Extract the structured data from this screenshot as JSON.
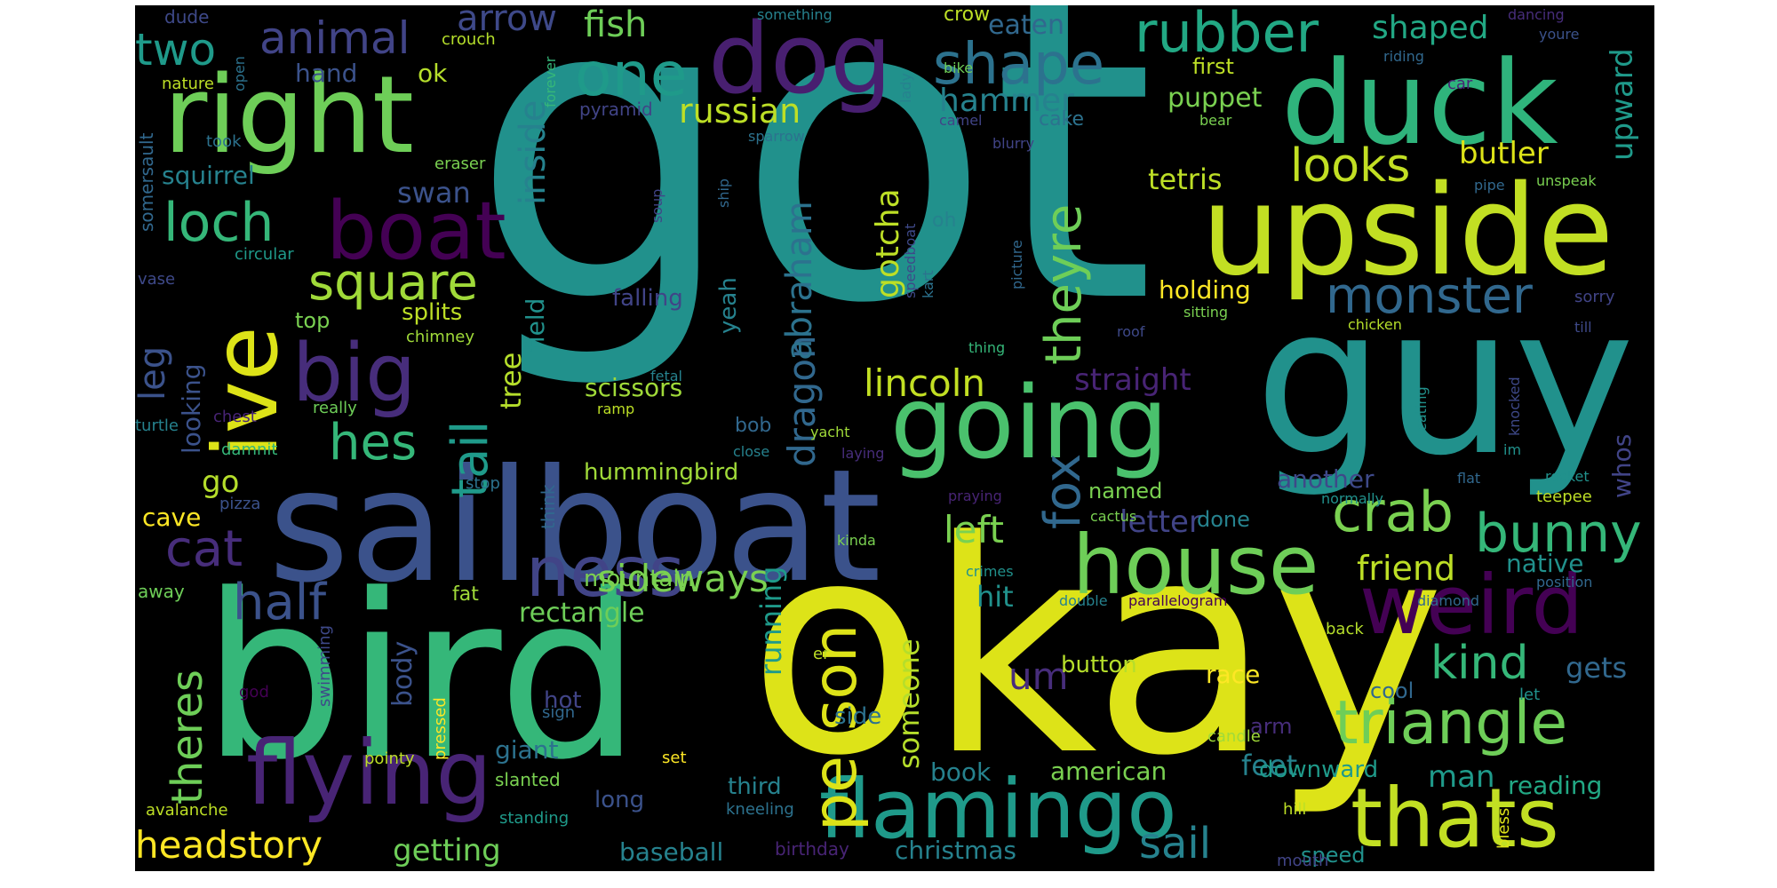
{
  "palette": {
    "background": "#000000",
    "page": "#ffffff",
    "viridis": [
      "#440154",
      "#482475",
      "#414487",
      "#355f8d",
      "#2a788e",
      "#21918c",
      "#22a884",
      "#44bf70",
      "#7ad151",
      "#bddf26",
      "#fde725"
    ]
  },
  "words": [
    {
      "text": "got",
      "color": "#21918c"
    },
    {
      "text": "okay",
      "color": "#dde318"
    },
    {
      "text": "bird",
      "color": "#35b779"
    },
    {
      "text": "guy",
      "color": "#21918c"
    },
    {
      "text": "sailboat",
      "color": "#3b528b"
    },
    {
      "text": "upside",
      "color": "#c2df23"
    },
    {
      "text": "duck",
      "color": "#2fb47c"
    },
    {
      "text": "right",
      "color": "#6ece58"
    },
    {
      "text": "dog",
      "color": "#481f70"
    },
    {
      "text": "going",
      "color": "#4ac16d"
    },
    {
      "text": "house",
      "color": "#6ece58"
    },
    {
      "text": "flying",
      "color": "#482475"
    },
    {
      "text": "flamingo",
      "color": "#1f9a8a"
    },
    {
      "text": "thats",
      "color": "#c2df23"
    },
    {
      "text": "weird",
      "color": "#440154"
    },
    {
      "text": "ive",
      "color": "#dde318"
    },
    {
      "text": "big",
      "color": "#472d7b"
    },
    {
      "text": "boat",
      "color": "#440154"
    },
    {
      "text": "crab",
      "color": "#7ad151"
    },
    {
      "text": "bunny",
      "color": "#35b779"
    },
    {
      "text": "triangle",
      "color": "#6ece58"
    },
    {
      "text": "person",
      "color": "#dde318"
    },
    {
      "text": "ness",
      "color": "#414487"
    },
    {
      "text": "shape",
      "color": "#2c728e"
    },
    {
      "text": "one",
      "color": "#1f9a8a"
    },
    {
      "text": "rubber",
      "color": "#22a884"
    },
    {
      "text": "monster",
      "color": "#31688e"
    },
    {
      "text": "square",
      "color": "#a0da39"
    },
    {
      "text": "loch",
      "color": "#35b779"
    },
    {
      "text": "half",
      "color": "#3b528b"
    },
    {
      "text": "theyre",
      "color": "#6ece58"
    },
    {
      "text": "fox",
      "color": "#31688e"
    },
    {
      "text": "cat",
      "color": "#472d7b"
    },
    {
      "text": "hes",
      "color": "#35b779"
    },
    {
      "text": "tail",
      "color": "#1f9a8a"
    },
    {
      "text": "kind",
      "color": "#35b779"
    },
    {
      "text": "two",
      "color": "#1f9a8a"
    },
    {
      "text": "animal",
      "color": "#414487"
    },
    {
      "text": "sideways",
      "color": "#7ad151"
    },
    {
      "text": "looks",
      "color": "#c2df23"
    },
    {
      "text": "theres",
      "color": "#6ece58"
    },
    {
      "text": "sail",
      "color": "#26828e"
    },
    {
      "text": "headstory",
      "color": "#fde725"
    },
    {
      "text": "dragon",
      "color": "#31688e"
    },
    {
      "text": "abraham",
      "color": "#2c728e"
    },
    {
      "text": "lincoln",
      "color": "#c2df23"
    },
    {
      "text": "inside",
      "color": "#26828e"
    },
    {
      "text": "arrow",
      "color": "#3e4989"
    },
    {
      "text": "fish",
      "color": "#6ece58"
    },
    {
      "text": "gotcha",
      "color": "#bddf26"
    },
    {
      "text": "leg",
      "color": "#3b528b"
    },
    {
      "text": "friend",
      "color": "#bddf26"
    },
    {
      "text": "left",
      "color": "#7ad151"
    },
    {
      "text": "russian",
      "color": "#bddf26"
    },
    {
      "text": "shaped",
      "color": "#22a884"
    },
    {
      "text": "upward",
      "color": "#1f9a8a"
    },
    {
      "text": "hammer",
      "color": "#26828e"
    },
    {
      "text": "letter",
      "color": "#414487"
    },
    {
      "text": "straight",
      "color": "#482475"
    },
    {
      "text": "tetris",
      "color": "#bddf26"
    },
    {
      "text": "butler",
      "color": "#dde318"
    },
    {
      "text": "um",
      "color": "#472d7b"
    },
    {
      "text": "gets",
      "color": "#31688e"
    },
    {
      "text": "someone",
      "color": "#b5de2b"
    },
    {
      "text": "running",
      "color": "#1f9a8a"
    },
    {
      "text": "feet",
      "color": "#26828e"
    },
    {
      "text": "man",
      "color": "#1f9a8a"
    },
    {
      "text": "getting",
      "color": "#6ece58"
    },
    {
      "text": "go",
      "color": "#b5de2b"
    },
    {
      "text": "swan",
      "color": "#3b528b"
    },
    {
      "text": "squirrel",
      "color": "#26828e"
    },
    {
      "text": "looking",
      "color": "#3b528b"
    },
    {
      "text": "tree",
      "color": "#b5de2b"
    },
    {
      "text": "puppet",
      "color": "#7ad151"
    },
    {
      "text": "holding",
      "color": "#fde725"
    },
    {
      "text": "eaten",
      "color": "#31688e"
    },
    {
      "text": "hit",
      "color": "#21918c"
    },
    {
      "text": "body",
      "color": "#3b528b"
    },
    {
      "text": "rectangle",
      "color": "#6ece58"
    },
    {
      "text": "native",
      "color": "#21918c"
    },
    {
      "text": "whos",
      "color": "#414487"
    },
    {
      "text": "another",
      "color": "#3e4989"
    },
    {
      "text": "cave",
      "color": "#fde725"
    },
    {
      "text": "hummingbird",
      "color": "#a0da39"
    },
    {
      "text": "scissors",
      "color": "#a0da39"
    },
    {
      "text": "baseball",
      "color": "#26828e"
    },
    {
      "text": "christmas",
      "color": "#26828e"
    },
    {
      "text": "american",
      "color": "#7ad151"
    },
    {
      "text": "giant",
      "color": "#2c728e"
    },
    {
      "text": "splits",
      "color": "#bddf26"
    },
    {
      "text": "field",
      "color": "#21918c"
    },
    {
      "text": "hand",
      "color": "#3b528b"
    },
    {
      "text": "ok",
      "color": "#b5de2b"
    },
    {
      "text": "falling",
      "color": "#414487"
    },
    {
      "text": "yeah",
      "color": "#26828e"
    },
    {
      "text": "mountain",
      "color": "#7ad151"
    },
    {
      "text": "book",
      "color": "#26828e"
    },
    {
      "text": "third",
      "color": "#26828e"
    },
    {
      "text": "long",
      "color": "#3b528b"
    },
    {
      "text": "hot",
      "color": "#414487"
    },
    {
      "text": "button",
      "color": "#b5de2b"
    },
    {
      "text": "side",
      "color": "#2c728e"
    },
    {
      "text": "race",
      "color": "#fde725"
    },
    {
      "text": "cool",
      "color": "#31688e"
    },
    {
      "text": "downward",
      "color": "#1f9a8a"
    },
    {
      "text": "reading",
      "color": "#22a884"
    },
    {
      "text": "speed",
      "color": "#21918c"
    },
    {
      "text": "fat",
      "color": "#a0da39"
    },
    {
      "text": "done",
      "color": "#26828e"
    },
    {
      "text": "named",
      "color": "#7ad151"
    },
    {
      "text": "top",
      "color": "#7ad151"
    },
    {
      "text": "arm",
      "color": "#472d7b"
    },
    {
      "text": "cake",
      "color": "#2c728e"
    },
    {
      "text": "first",
      "color": "#bddf26"
    },
    {
      "text": "oh",
      "color": "#26828e"
    },
    {
      "text": "bob",
      "color": "#31688e"
    },
    {
      "text": "crow",
      "color": "#bddf26"
    },
    {
      "text": "pyramid",
      "color": "#414487"
    },
    {
      "text": "somersault",
      "color": "#31688e"
    },
    {
      "text": "dude",
      "color": "#3e4989"
    },
    {
      "text": "crouch",
      "color": "#b5de2b"
    },
    {
      "text": "nature",
      "color": "#bddf26"
    },
    {
      "text": "open",
      "color": "#2c728e"
    },
    {
      "text": "forever",
      "color": "#35b779"
    },
    {
      "text": "took",
      "color": "#2c728e"
    },
    {
      "text": "eraser",
      "color": "#7ad151"
    },
    {
      "text": "circular",
      "color": "#1f9a8a"
    },
    {
      "text": "vase",
      "color": "#3e4989"
    },
    {
      "text": "chimney",
      "color": "#a0da39"
    },
    {
      "text": "chest",
      "color": "#482475"
    },
    {
      "text": "really",
      "color": "#6ece58"
    },
    {
      "text": "turtle",
      "color": "#26828e"
    },
    {
      "text": "damnit",
      "color": "#35b779"
    },
    {
      "text": "pizza",
      "color": "#3b528b"
    },
    {
      "text": "away",
      "color": "#6ece58"
    },
    {
      "text": "stop",
      "color": "#2c728e"
    },
    {
      "text": "think",
      "color": "#31688e"
    },
    {
      "text": "pointy",
      "color": "#bddf26"
    },
    {
      "text": "avalanche",
      "color": "#bddf26"
    },
    {
      "text": "god",
      "color": "#440154"
    },
    {
      "text": "swimming",
      "color": "#3e4989"
    },
    {
      "text": "pressed",
      "color": "#fde725"
    },
    {
      "text": "sign",
      "color": "#31688e"
    },
    {
      "text": "slanted",
      "color": "#7ad151"
    },
    {
      "text": "standing",
      "color": "#1f9a8a"
    },
    {
      "text": "kneeling",
      "color": "#2c728e"
    },
    {
      "text": "birthday",
      "color": "#482475"
    },
    {
      "text": "er",
      "color": "#bddf26"
    },
    {
      "text": "set",
      "color": "#fde725"
    },
    {
      "text": "hill",
      "color": "#bddf26"
    },
    {
      "text": "candle",
      "color": "#a0da39"
    },
    {
      "text": "let",
      "color": "#21918c"
    },
    {
      "text": "mouth",
      "color": "#414487"
    },
    {
      "text": "bless",
      "color": "#dde318"
    },
    {
      "text": "something",
      "color": "#26828e"
    },
    {
      "text": "dancing",
      "color": "#472d7b"
    },
    {
      "text": "youre",
      "color": "#3b528b"
    },
    {
      "text": "riding",
      "color": "#31688e"
    },
    {
      "text": "car",
      "color": "#482475"
    },
    {
      "text": "bike",
      "color": "#6ece58"
    },
    {
      "text": "lady",
      "color": "#26828e"
    },
    {
      "text": "camel",
      "color": "#414487"
    },
    {
      "text": "bear",
      "color": "#7ad151"
    },
    {
      "text": "sparrow",
      "color": "#2c728e"
    },
    {
      "text": "blurry",
      "color": "#414487"
    },
    {
      "text": "pipe",
      "color": "#31688e"
    },
    {
      "text": "unspeak",
      "color": "#7ad151"
    },
    {
      "text": "soup",
      "color": "#414487"
    },
    {
      "text": "ship",
      "color": "#31688e"
    },
    {
      "text": "speedboat",
      "color": "#3e4989"
    },
    {
      "text": "picture",
      "color": "#31688e"
    },
    {
      "text": "kart",
      "color": "#2c728e"
    },
    {
      "text": "sitting",
      "color": "#7ad151"
    },
    {
      "text": "chicken",
      "color": "#b5de2b"
    },
    {
      "text": "roof",
      "color": "#3e4989"
    },
    {
      "text": "thing",
      "color": "#35b779"
    },
    {
      "text": "sorry",
      "color": "#414487"
    },
    {
      "text": "till",
      "color": "#3e4989"
    },
    {
      "text": "fetal",
      "color": "#26828e"
    },
    {
      "text": "ramp",
      "color": "#bddf26"
    },
    {
      "text": "eating",
      "color": "#21918c"
    },
    {
      "text": "knocked",
      "color": "#3e4989"
    },
    {
      "text": "im",
      "color": "#21918c"
    },
    {
      "text": "yacht",
      "color": "#a0da39"
    },
    {
      "text": "laying",
      "color": "#472d7b"
    },
    {
      "text": "close",
      "color": "#26828e"
    },
    {
      "text": "praying",
      "color": "#482475"
    },
    {
      "text": "normally",
      "color": "#21918c"
    },
    {
      "text": "flat",
      "color": "#31688e"
    },
    {
      "text": "rocket",
      "color": "#21918c"
    },
    {
      "text": "teepee",
      "color": "#bddf26"
    },
    {
      "text": "cactus",
      "color": "#7ad151"
    },
    {
      "text": "kinda",
      "color": "#7ad151"
    },
    {
      "text": "crimes",
      "color": "#21918c"
    },
    {
      "text": "double",
      "color": "#26828e"
    },
    {
      "text": "parallelogram",
      "color": "#440154"
    },
    {
      "text": "diamond",
      "color": "#31688e"
    },
    {
      "text": "position",
      "color": "#31688e"
    },
    {
      "text": "back",
      "color": "#b5de2b"
    }
  ]
}
